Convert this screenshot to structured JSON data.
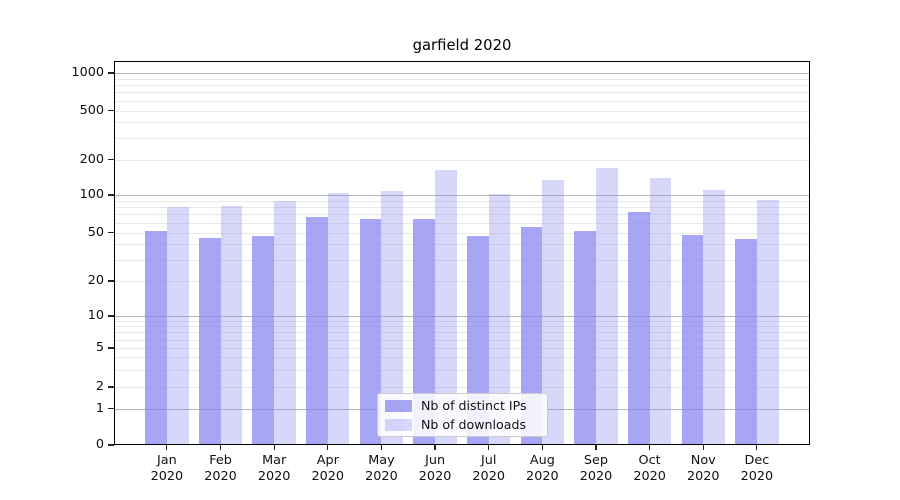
{
  "figure_title": "garfield 2020",
  "chart_data": {
    "type": "bar",
    "title": "garfield 2020",
    "xlabel": "",
    "ylabel": "",
    "yscale": "symlog",
    "ylim": [
      0,
      1260
    ],
    "grid": true,
    "categories": [
      "Jan",
      "Feb",
      "Mar",
      "Apr",
      "May",
      "Jun",
      "Jul",
      "Aug",
      "Sep",
      "Oct",
      "Nov",
      "Dec"
    ],
    "category_year": "2020",
    "yticks": [
      0,
      1,
      2,
      5,
      10,
      20,
      50,
      100,
      200,
      500,
      1000
    ],
    "major_gridline_values": [
      1,
      10,
      100,
      1000
    ],
    "minor_gridline_multiples": [
      2,
      3,
      4,
      5,
      6,
      7,
      8,
      9
    ],
    "minor_gridline_decades": [
      1,
      10,
      100
    ],
    "series": [
      {
        "name": "Nb of distinct IPs",
        "color": "rgba(132,132,240,0.72)",
        "flat_color": "#a9a9f3",
        "values": [
          51,
          45,
          47,
          67,
          64,
          64,
          47,
          55,
          51,
          73,
          48,
          44
        ]
      },
      {
        "name": "Nb of downloads",
        "color": "rgba(132,132,240,0.32)",
        "flat_color": "#dadaf8",
        "values": [
          80,
          82,
          90,
          104,
          109,
          162,
          101,
          133,
          168,
          140,
          110,
          91
        ]
      }
    ],
    "legend": {
      "position": "lower center",
      "entries": [
        "Nb of distinct IPs",
        "Nb of downloads"
      ]
    }
  }
}
